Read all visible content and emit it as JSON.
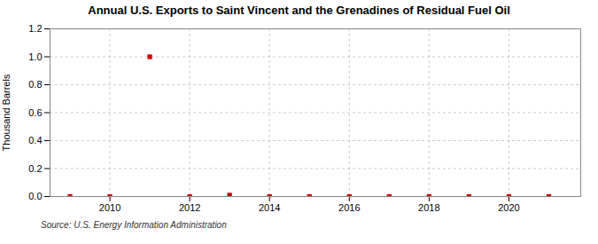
{
  "chart_data": {
    "type": "scatter",
    "title": "Annual U.S. Exports to Saint Vincent and the Grenadines of Residual Fuel Oil",
    "ylabel": "Thousand Barrels",
    "annotation": "Source: U.S. Energy Information Administration",
    "x": [
      2009,
      2010,
      2011,
      2012,
      2013,
      2014,
      2015,
      2016,
      2017,
      2018,
      2019,
      2020,
      2021
    ],
    "values": [
      0.0,
      0.0,
      1.0,
      0.0,
      0.01,
      0.0,
      0.0,
      0.0,
      0.0,
      0.0,
      0.0,
      0.0,
      0.0
    ],
    "color": "#CC0000",
    "marker": "square",
    "xlim": [
      2008.5,
      2021.8
    ],
    "xticks": [
      2010,
      2012,
      2014,
      2016,
      2018,
      2020
    ],
    "ylim": [
      0.0,
      1.2
    ],
    "yticks": [
      {
        "value": 0.0,
        "label": "0.0"
      },
      0.2,
      0.4,
      0.6,
      0.8,
      {
        "value": 1.0,
        "label": "1.0"
      },
      1.2
    ],
    "grid": true
  }
}
